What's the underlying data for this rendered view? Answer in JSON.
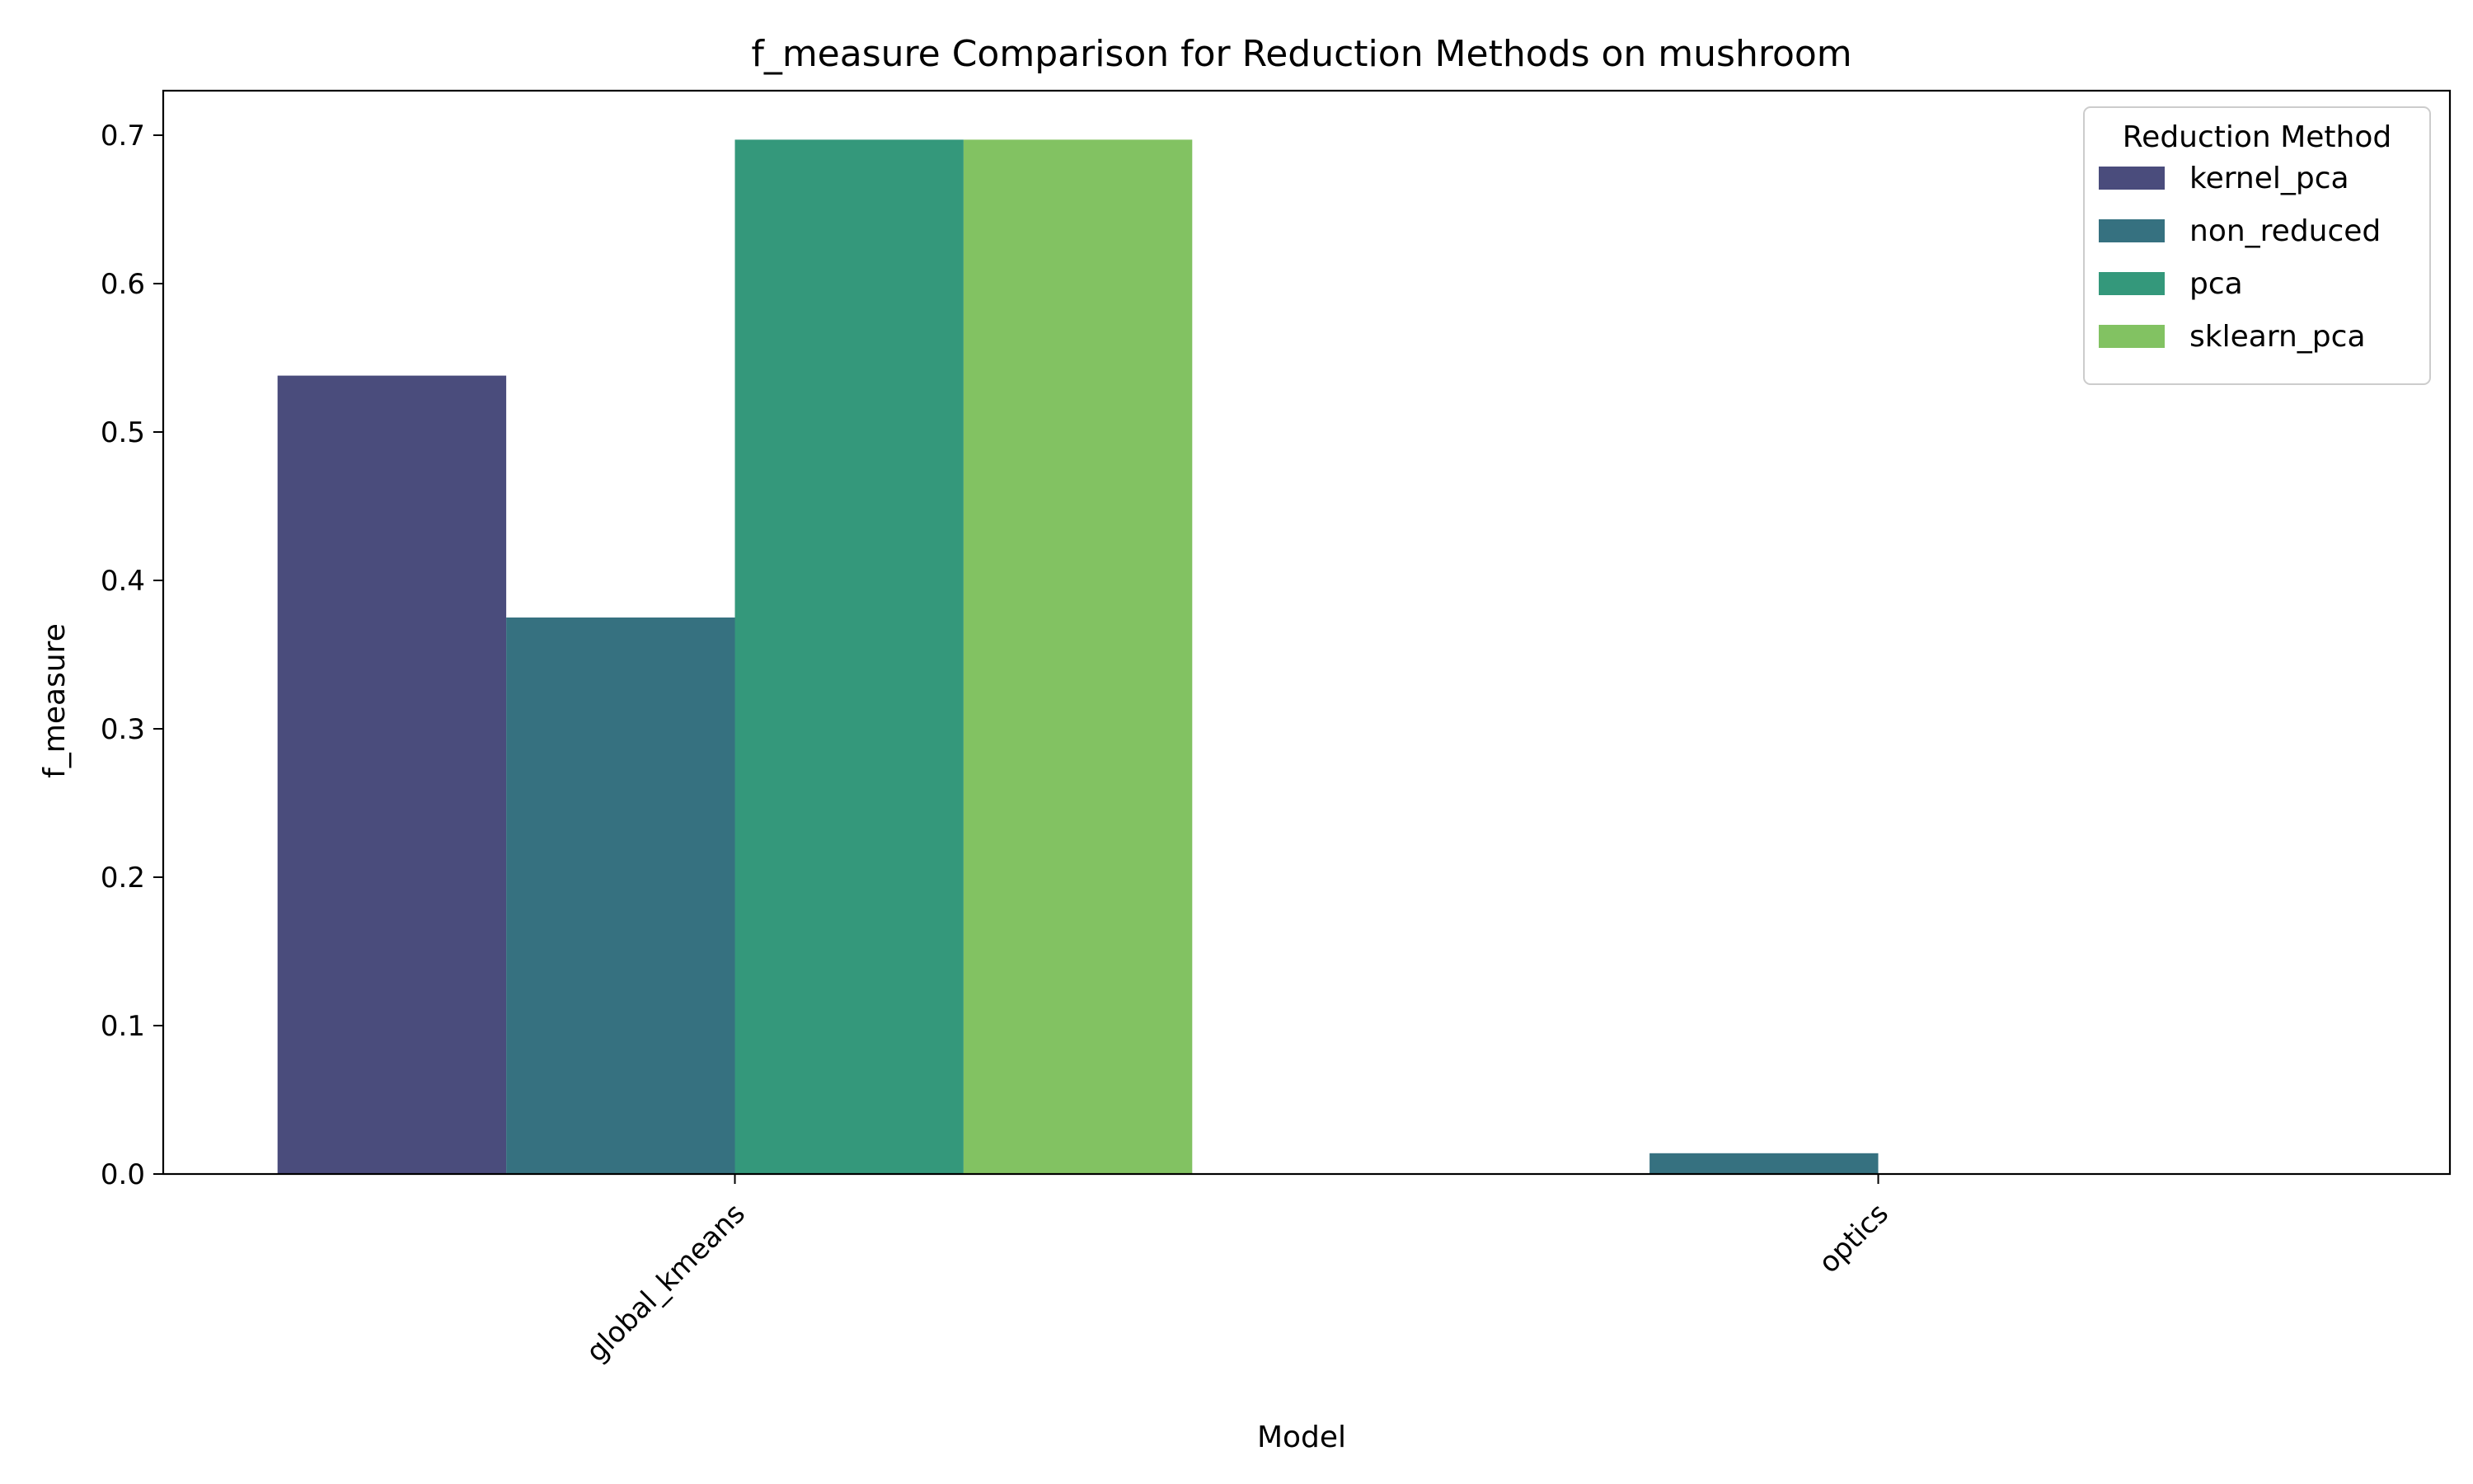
{
  "chart_data": {
    "type": "bar",
    "title": "f_measure Comparison for Reduction Methods on mushroom",
    "xlabel": "Model",
    "ylabel": "f_measure",
    "categories": [
      "global_kmeans",
      "optics"
    ],
    "ylim": [
      0,
      0.73
    ],
    "yticks": [
      0.0,
      0.1,
      0.2,
      0.3,
      0.4,
      0.5,
      0.6,
      0.7
    ],
    "series": [
      {
        "name": "kernel_pca",
        "values": [
          0.538,
          0.0
        ],
        "color": "#4a4c7c"
      },
      {
        "name": "non_reduced",
        "values": [
          0.375,
          0.014
        ],
        "color": "#367180"
      },
      {
        "name": "pca",
        "values": [
          0.697,
          0.0
        ],
        "color": "#34987b"
      },
      {
        "name": "sklearn_pca",
        "values": [
          0.697,
          0.0
        ],
        "color": "#82c262"
      }
    ],
    "legend": {
      "title": "Reduction Method",
      "position": "top-right"
    },
    "grid": false
  }
}
